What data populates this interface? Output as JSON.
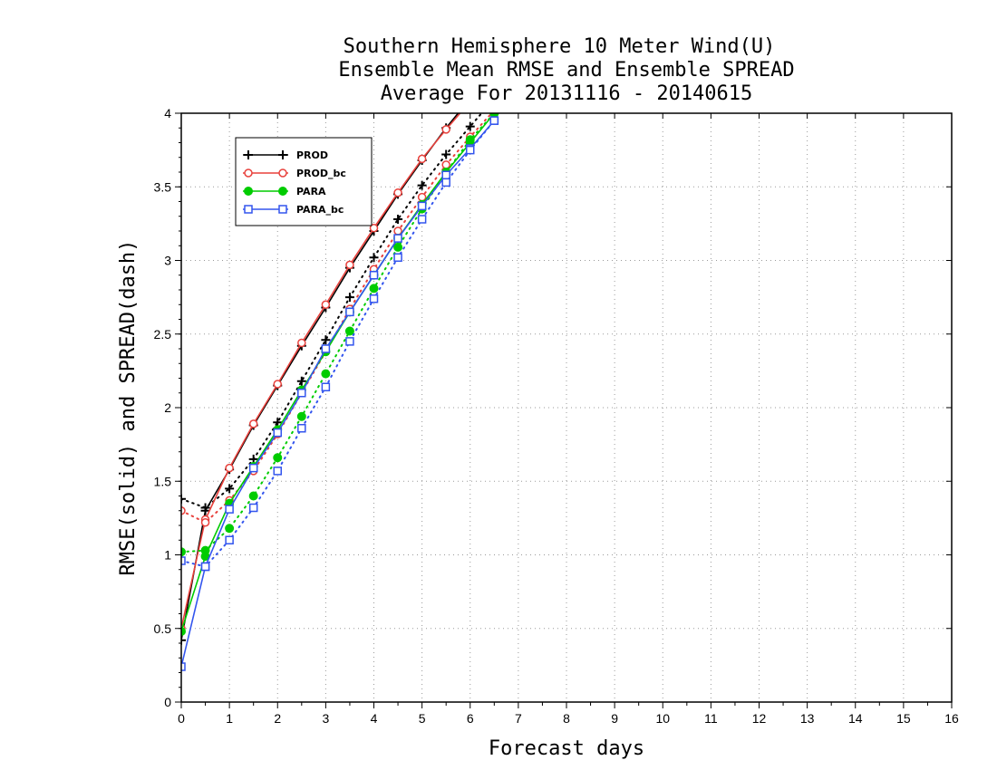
{
  "chart_data": {
    "type": "line",
    "title_lines": [
      "Southern Hemisphere 10 Meter Wind(U)",
      "Ensemble Mean RMSE and Ensemble SPREAD",
      "Average For 20131116 - 20140615"
    ],
    "xlabel": "Forecast days",
    "ylabel": "RMSE(solid) and SPREAD(dash)",
    "xlim": [
      0,
      16
    ],
    "ylim": [
      0,
      4
    ],
    "xticks": [
      "0",
      "1",
      "2",
      "3",
      "4",
      "5",
      "6",
      "7",
      "8",
      "9",
      "10",
      "11",
      "12",
      "13",
      "14",
      "15",
      "16"
    ],
    "yticks": [
      "0",
      "0.5",
      "1",
      "1.5",
      "2",
      "2.5",
      "3",
      "3.5",
      "4"
    ],
    "grid": true,
    "legend_position": "top-left",
    "x": [
      0,
      0.5,
      1,
      1.5,
      2,
      2.5,
      3,
      3.5,
      4,
      4.5,
      5,
      5.5,
      6,
      6.5
    ],
    "series": [
      {
        "name": "PROD",
        "color": "#000000",
        "marker": "plus",
        "rmse": [
          0.42,
          1.3,
          1.58,
          1.88,
          2.15,
          2.42,
          2.68,
          2.95,
          3.2,
          3.45,
          3.68,
          3.9,
          4.1,
          4.3
        ],
        "spread": [
          1.38,
          1.32,
          1.45,
          1.65,
          1.9,
          2.18,
          2.46,
          2.75,
          3.02,
          3.28,
          3.51,
          3.72,
          3.91,
          4.1
        ]
      },
      {
        "name": "PROD_bc",
        "color": "#e8413c",
        "marker": "circle-open",
        "rmse": [
          0.5,
          1.24,
          1.59,
          1.89,
          2.16,
          2.44,
          2.7,
          2.97,
          3.22,
          3.46,
          3.69,
          3.89,
          4.08,
          4.28
        ],
        "spread": [
          1.3,
          1.22,
          1.37,
          1.57,
          1.82,
          2.1,
          2.38,
          2.67,
          2.94,
          3.2,
          3.43,
          3.65,
          3.84,
          4.02
        ]
      },
      {
        "name": "PARA",
        "color": "#00cc00",
        "marker": "circle-filled",
        "rmse": [
          0.48,
          0.99,
          1.35,
          1.6,
          1.85,
          2.12,
          2.38,
          2.65,
          2.9,
          3.15,
          3.38,
          3.6,
          3.8,
          4.0
        ],
        "spread": [
          1.02,
          1.03,
          1.18,
          1.4,
          1.66,
          1.94,
          2.23,
          2.52,
          2.81,
          3.09,
          3.35,
          3.6,
          3.82,
          4.0
        ]
      },
      {
        "name": "PARA_bc",
        "color": "#3355ee",
        "marker": "square-open",
        "rmse": [
          0.24,
          0.92,
          1.31,
          1.59,
          1.83,
          2.1,
          2.4,
          2.65,
          2.9,
          3.15,
          3.37,
          3.58,
          3.76,
          3.95
        ],
        "spread": [
          0.96,
          0.92,
          1.1,
          1.32,
          1.57,
          1.86,
          2.14,
          2.45,
          2.74,
          3.02,
          3.28,
          3.53,
          3.75,
          3.95
        ]
      }
    ]
  }
}
